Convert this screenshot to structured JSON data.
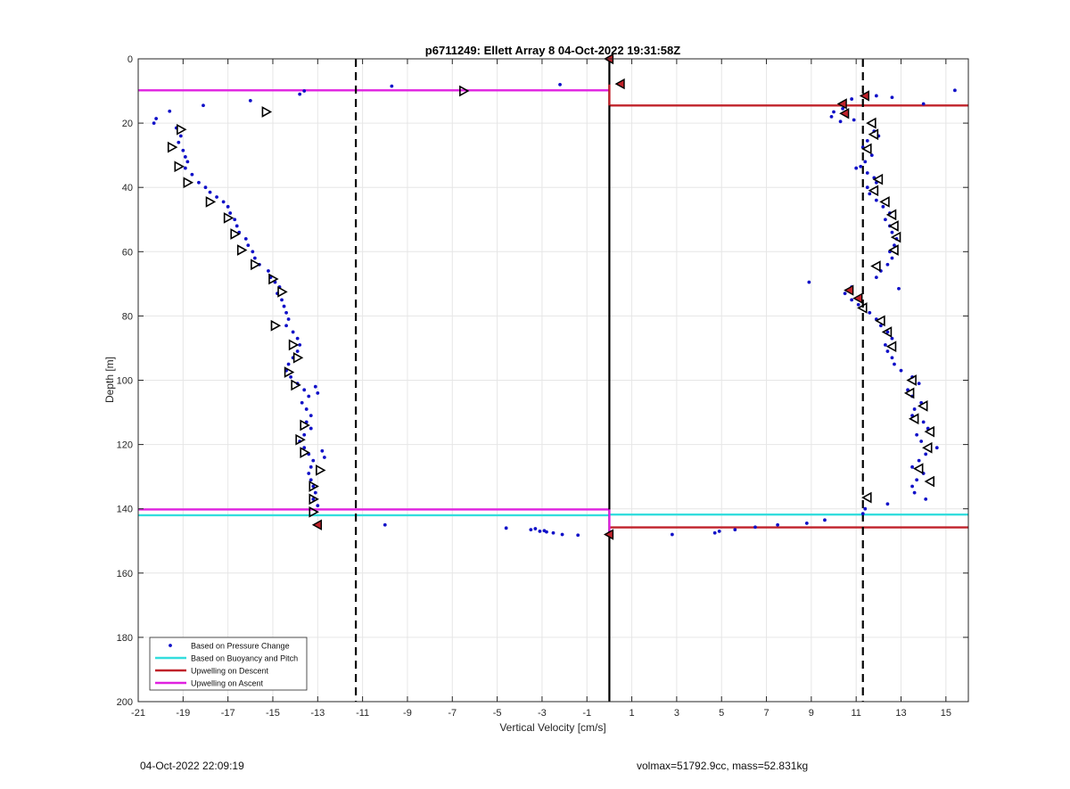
{
  "chart_data": {
    "type": "scatter",
    "title": "p6711249: Ellett Array 8 04-Oct-2022 19:31:58Z",
    "xlabel": "Vertical Velocity [cm/s]",
    "ylabel": "Depth [m]",
    "xlim": [
      -21,
      16
    ],
    "ylim": [
      200,
      0
    ],
    "y_reversed": true,
    "grid": true,
    "xticks": [
      -21,
      -19,
      -17,
      -15,
      -13,
      -11,
      -9,
      -7,
      -5,
      -3,
      -1,
      1,
      3,
      5,
      7,
      9,
      11,
      13,
      15
    ],
    "yticks": [
      0,
      20,
      40,
      60,
      80,
      100,
      120,
      140,
      160,
      180,
      200
    ],
    "legend_position": "bottom-left",
    "legend": [
      {
        "label": "Based on Pressure Change",
        "color": "#1010c8",
        "style": "dot"
      },
      {
        "label": "Based on Buoyancy and Pitch",
        "color": "#33dddd",
        "style": "line"
      },
      {
        "label": "Upwelling on Descent",
        "color": "#c0222a",
        "style": "line"
      },
      {
        "label": "Upwelling on Ascent",
        "color": "#e020e0",
        "style": "line"
      }
    ],
    "colors": {
      "pressure": "#1010c8",
      "buoyancy": "#33dddd",
      "descent": "#c0222a",
      "ascent": "#e020e0",
      "axis": "#000000",
      "grid": "#e6e6e6"
    },
    "vertical_lines": [
      {
        "x": 0,
        "style": "solid"
      },
      {
        "x": -11.3,
        "style": "dashed"
      },
      {
        "x": 11.3,
        "style": "dashed"
      }
    ],
    "horizontal_lines": [
      {
        "name": "Upwelling on Ascent",
        "y": 9.8,
        "x_from": -21,
        "x_to": 0
      },
      {
        "name": "Upwelling on Descent",
        "y": 14.5,
        "x_from": 0,
        "x_to": 16
      },
      {
        "name": "Upwelling on Ascent",
        "y": 140.2,
        "x_from": -21,
        "x_to": 0
      },
      {
        "name": "Based on Buoyancy and Pitch",
        "y": 142,
        "x_from": -21,
        "x_to": 0
      },
      {
        "name": "Based on Buoyancy and Pitch",
        "y": 141.8,
        "x_from": 0,
        "x_to": 16
      },
      {
        "name": "Upwelling on Descent",
        "y": 145.8,
        "x_from": 0,
        "x_to": 16
      }
    ],
    "series": [
      {
        "name": "Based on Pressure Change",
        "points": [
          [
            -20.3,
            20
          ],
          [
            -20.2,
            18.6
          ],
          [
            -19.6,
            16.3
          ],
          [
            -19.3,
            21.5
          ],
          [
            -19.1,
            24
          ],
          [
            -19.2,
            26
          ],
          [
            -19.0,
            28.5
          ],
          [
            -18.9,
            30.5
          ],
          [
            -18.8,
            32
          ],
          [
            -18.9,
            34
          ],
          [
            -18.6,
            36
          ],
          [
            -18.3,
            38.5
          ],
          [
            -18.0,
            40
          ],
          [
            -17.8,
            41.5
          ],
          [
            -17.5,
            43
          ],
          [
            -17.2,
            44.5
          ],
          [
            -17.0,
            46
          ],
          [
            -16.9,
            48
          ],
          [
            -16.7,
            50
          ],
          [
            -16.6,
            52
          ],
          [
            -16.5,
            54
          ],
          [
            -16.2,
            56
          ],
          [
            -16.1,
            58
          ],
          [
            -15.9,
            60
          ],
          [
            -15.8,
            62
          ],
          [
            -15.6,
            64
          ],
          [
            -15.2,
            66
          ],
          [
            -15.1,
            68
          ],
          [
            -14.9,
            69.5
          ],
          [
            -14.7,
            71
          ],
          [
            -14.8,
            73
          ],
          [
            -14.6,
            75
          ],
          [
            -14.5,
            77
          ],
          [
            -14.4,
            79
          ],
          [
            -14.3,
            81
          ],
          [
            -14.4,
            83
          ],
          [
            -14.1,
            85
          ],
          [
            -13.9,
            87
          ],
          [
            -13.8,
            89
          ],
          [
            -13.9,
            91
          ],
          [
            -14.1,
            93
          ],
          [
            -14.3,
            95
          ],
          [
            -14.4,
            97
          ],
          [
            -14.2,
            99
          ],
          [
            -13.9,
            101
          ],
          [
            -13.6,
            103
          ],
          [
            -13.4,
            105
          ],
          [
            -13.7,
            107
          ],
          [
            -13.5,
            109
          ],
          [
            -13.3,
            111
          ],
          [
            -13.5,
            113
          ],
          [
            -13.3,
            115
          ],
          [
            -13.6,
            117
          ],
          [
            -13.8,
            119
          ],
          [
            -13.6,
            121
          ],
          [
            -13.4,
            123
          ],
          [
            -13.2,
            125
          ],
          [
            -13.3,
            127
          ],
          [
            -13.4,
            129
          ],
          [
            -13.3,
            131
          ],
          [
            -13.2,
            133
          ],
          [
            -13.1,
            135
          ],
          [
            -13.2,
            137
          ],
          [
            -13.0,
            139
          ],
          [
            -12.8,
            122
          ],
          [
            -12.7,
            124
          ],
          [
            -13.1,
            102
          ],
          [
            -13.0,
            104
          ],
          [
            -13.6,
            10
          ],
          [
            -13.8,
            11
          ],
          [
            -16.0,
            13
          ],
          [
            -18.1,
            14.5
          ],
          [
            -9.7,
            8.5
          ],
          [
            -2.2,
            8
          ],
          [
            -10.0,
            145
          ],
          [
            -4.6,
            146
          ],
          [
            -3.5,
            146.5
          ],
          [
            -3.1,
            147
          ],
          [
            -2.8,
            147.2
          ],
          [
            -2.5,
            147.5
          ],
          [
            -2.1,
            148
          ],
          [
            -1.4,
            148.2
          ],
          [
            -3.3,
            146.2
          ],
          [
            -2.9,
            146.8
          ],
          [
            15.4,
            9.8
          ],
          [
            14.0,
            14
          ],
          [
            12.6,
            12
          ],
          [
            11.9,
            11.5
          ],
          [
            10.8,
            12.5
          ],
          [
            10.5,
            14
          ],
          [
            10.4,
            15.5
          ],
          [
            10.0,
            16.5
          ],
          [
            9.9,
            18
          ],
          [
            10.3,
            19.5
          ],
          [
            10.9,
            19
          ],
          [
            11.8,
            22.5
          ],
          [
            12.0,
            24
          ],
          [
            11.5,
            25.5
          ],
          [
            11.3,
            27.5
          ],
          [
            11.7,
            30
          ],
          [
            11.4,
            32
          ],
          [
            11.2,
            33.5
          ],
          [
            11.0,
            34
          ],
          [
            11.5,
            35.5
          ],
          [
            11.8,
            37
          ],
          [
            11.9,
            38.5
          ],
          [
            11.5,
            40
          ],
          [
            11.6,
            42
          ],
          [
            11.9,
            44
          ],
          [
            12.2,
            46
          ],
          [
            12.5,
            48
          ],
          [
            12.3,
            50
          ],
          [
            12.5,
            52
          ],
          [
            12.6,
            54
          ],
          [
            12.8,
            56
          ],
          [
            12.7,
            58
          ],
          [
            12.5,
            60
          ],
          [
            12.6,
            62
          ],
          [
            12.4,
            64
          ],
          [
            12.1,
            66
          ],
          [
            11.9,
            68
          ],
          [
            8.9,
            69.5
          ],
          [
            10.8,
            71
          ],
          [
            10.5,
            73
          ],
          [
            10.8,
            75
          ],
          [
            11.1,
            76.5
          ],
          [
            11.6,
            79
          ],
          [
            11.9,
            81
          ],
          [
            12.1,
            83
          ],
          [
            12.4,
            85
          ],
          [
            12.6,
            87
          ],
          [
            12.3,
            89
          ],
          [
            12.4,
            91
          ],
          [
            12.6,
            93
          ],
          [
            12.7,
            95
          ],
          [
            13.0,
            97
          ],
          [
            13.5,
            99
          ],
          [
            13.8,
            101
          ],
          [
            13.3,
            103
          ],
          [
            13.5,
            105
          ],
          [
            13.9,
            107
          ],
          [
            13.6,
            109
          ],
          [
            13.5,
            111
          ],
          [
            14.0,
            113
          ],
          [
            14.2,
            115
          ],
          [
            13.7,
            117
          ],
          [
            13.9,
            119
          ],
          [
            14.6,
            121
          ],
          [
            14.1,
            123
          ],
          [
            13.8,
            125
          ],
          [
            13.5,
            127
          ],
          [
            14.0,
            129
          ],
          [
            13.7,
            131
          ],
          [
            13.5,
            133
          ],
          [
            13.6,
            135
          ],
          [
            14.1,
            137
          ],
          [
            11.4,
            140
          ],
          [
            11.3,
            141.5
          ],
          [
            12.4,
            138.5
          ],
          [
            12.9,
            71.5
          ],
          [
            9.6,
            143.5
          ],
          [
            8.8,
            144.5
          ],
          [
            7.5,
            145
          ],
          [
            6.5,
            145.7
          ],
          [
            5.6,
            146.5
          ],
          [
            4.9,
            147
          ],
          [
            4.7,
            147.5
          ],
          [
            2.8,
            148
          ]
        ]
      },
      {
        "name": "markers_ascent",
        "points": [
          [
            -6.5,
            10
          ],
          [
            -15.3,
            16.5
          ],
          [
            -19.1,
            22
          ],
          [
            -19.5,
            27.5
          ],
          [
            -19.2,
            33.5
          ],
          [
            -18.8,
            38.5
          ],
          [
            -17.8,
            44.5
          ],
          [
            -17.0,
            49.5
          ],
          [
            -16.7,
            54.5
          ],
          [
            -16.4,
            59.5
          ],
          [
            -15.8,
            64
          ],
          [
            -15.0,
            68.5
          ],
          [
            -14.6,
            72.5
          ],
          [
            -14.9,
            83
          ],
          [
            -14.1,
            89
          ],
          [
            -13.9,
            93
          ],
          [
            -14.3,
            97.5
          ],
          [
            -14.0,
            101.5
          ],
          [
            -13.6,
            114
          ],
          [
            -13.6,
            122.5
          ],
          [
            -12.9,
            128
          ],
          [
            -13.8,
            118.5
          ],
          [
            -13.2,
            133
          ],
          [
            -13.2,
            137
          ],
          [
            -13.2,
            141
          ]
        ]
      },
      {
        "name": "markers_descent",
        "points": [
          [
            11.7,
            20
          ],
          [
            11.8,
            23.5
          ],
          [
            11.5,
            28
          ],
          [
            12.0,
            37.5
          ],
          [
            11.8,
            41
          ],
          [
            12.3,
            44.5
          ],
          [
            12.6,
            48.5
          ],
          [
            12.7,
            52
          ],
          [
            12.8,
            55.5
          ],
          [
            12.7,
            59.5
          ],
          [
            11.9,
            64.5
          ],
          [
            11.3,
            77.5
          ],
          [
            12.1,
            81.5
          ],
          [
            12.4,
            85
          ],
          [
            12.6,
            89.5
          ],
          [
            13.5,
            100
          ],
          [
            13.4,
            104
          ],
          [
            14.0,
            108
          ],
          [
            13.6,
            112
          ],
          [
            14.3,
            116
          ],
          [
            14.2,
            121
          ],
          [
            13.8,
            127.5
          ],
          [
            14.3,
            131.5
          ],
          [
            11.5,
            136.5
          ]
        ]
      },
      {
        "name": "markers_red",
        "points": [
          [
            0,
            0
          ],
          [
            0.5,
            7.8
          ],
          [
            10.4,
            14
          ],
          [
            10.5,
            17
          ],
          [
            11.4,
            11.5
          ],
          [
            10.7,
            72
          ],
          [
            11.1,
            74.5
          ],
          [
            -13.0,
            145
          ],
          [
            0,
            148
          ]
        ]
      }
    ]
  },
  "footer": {
    "left": "04-Oct-2022 22:09:19",
    "right": "volmax=51792.9cc, mass=52.831kg"
  }
}
